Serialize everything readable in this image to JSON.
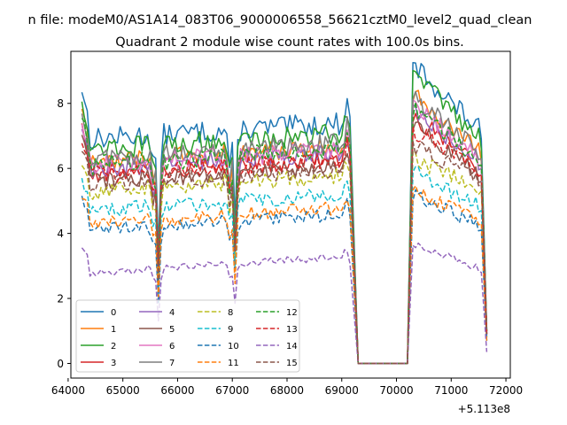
{
  "chart_data": {
    "type": "line",
    "suptitle": "n file: modeM0/AS1A14_083T06_9000006558_56621cztM0_level2_quad_clean",
    "title": "Quadrant 2 module wise count rates with 100.0s bins.",
    "xlabel": "",
    "ylabel": "",
    "x_offset_label": "+5.113e8",
    "xlim": [
      64050,
      72080
    ],
    "ylim": [
      -0.45,
      9.6
    ],
    "xticks": [
      64000,
      65000,
      66000,
      67000,
      68000,
      69000,
      70000,
      71000,
      72000
    ],
    "yticks": [
      0,
      2,
      4,
      6,
      8
    ],
    "grid": false,
    "legend_location": "lower-left",
    "time_start": 64250,
    "time_step": 100,
    "gap": {
      "start": 69300,
      "end": 70200
    },
    "series": [
      {
        "name": "0",
        "color": "#1f77b4",
        "style": "solid",
        "start": 8.45,
        "level": 6.9,
        "after": 9.2,
        "end": 1.0,
        "bump": 0.3
      },
      {
        "name": "1",
        "color": "#ff7f0e",
        "style": "solid",
        "start": 7.9,
        "level": 6.2,
        "after": 8.3,
        "end": 1.0,
        "bump": 0.3
      },
      {
        "name": "2",
        "color": "#2ca02c",
        "style": "solid",
        "start": 8.1,
        "level": 6.6,
        "after": 8.9,
        "end": 1.0,
        "bump": 0.3
      },
      {
        "name": "3",
        "color": "#d62728",
        "style": "solid",
        "start": 7.4,
        "level": 5.8,
        "after": 7.6,
        "end": 0.9,
        "bump": 0.3
      },
      {
        "name": "4",
        "color": "#9467bd",
        "style": "solid",
        "start": 7.2,
        "level": 6.0,
        "after": 7.8,
        "end": 0.9,
        "bump": 0.3
      },
      {
        "name": "5",
        "color": "#8c564b",
        "style": "solid",
        "start": 7.0,
        "level": 5.6,
        "after": 7.3,
        "end": 0.9,
        "bump": 0.3
      },
      {
        "name": "6",
        "color": "#e377c2",
        "style": "solid",
        "start": 7.3,
        "level": 6.1,
        "after": 7.9,
        "end": 0.9,
        "bump": 0.3
      },
      {
        "name": "7",
        "color": "#7f7f7f",
        "style": "solid",
        "start": 7.6,
        "level": 6.3,
        "after": 8.2,
        "end": 1.0,
        "bump": 0.3
      },
      {
        "name": "8",
        "color": "#bcbd22",
        "style": "dashed",
        "start": 6.0,
        "level": 5.3,
        "after": 6.3,
        "end": 0.8,
        "bump": 0.3
      },
      {
        "name": "9",
        "color": "#17becf",
        "style": "dashed",
        "start": 5.6,
        "level": 4.7,
        "after": 5.9,
        "end": 0.8,
        "bump": 0.3
      },
      {
        "name": "10",
        "color": "#1f77b4",
        "style": "dashed",
        "start": 5.05,
        "level": 4.1,
        "after": 5.2,
        "end": 0.7,
        "bump": 0.3
      },
      {
        "name": "11",
        "color": "#ff7f0e",
        "style": "dashed",
        "start": 5.2,
        "level": 4.3,
        "after": 5.3,
        "end": 0.7,
        "bump": 0.3
      },
      {
        "name": "12",
        "color": "#2ca02c",
        "style": "dashed",
        "start": 7.7,
        "level": 6.1,
        "after": 7.8,
        "end": 1.0,
        "bump": 0.3
      },
      {
        "name": "13",
        "color": "#d62728",
        "style": "dashed",
        "start": 6.9,
        "level": 5.8,
        "after": 7.2,
        "end": 0.9,
        "bump": 0.3
      },
      {
        "name": "14",
        "color": "#9467bd",
        "style": "dashed",
        "start": 3.6,
        "level": 2.8,
        "after": 3.7,
        "end": 0.35,
        "bump": 0.25
      },
      {
        "name": "15",
        "color": "#8c564b",
        "style": "dashed",
        "start": 6.6,
        "level": 5.5,
        "after": 6.7,
        "end": 0.9,
        "bump": 0.3
      }
    ]
  }
}
